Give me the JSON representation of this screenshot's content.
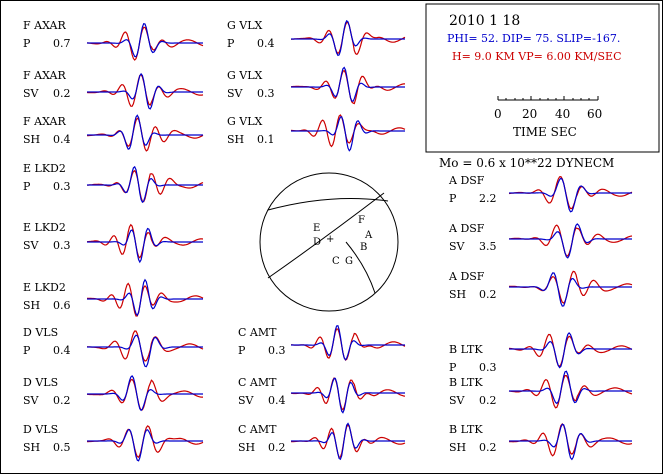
{
  "header": {
    "date": "2010  1 18",
    "mechanism": "PHI=  52. DIP= 75. SLIP=-167.",
    "depth_vp": "H=  9.0 KM  VP= 6.00 KM/SEC",
    "scale_ticks": [
      "0",
      "20",
      "40",
      "60"
    ],
    "scale_label": "TIME  SEC",
    "moment": "Mo =  0.6 x 10**22 DYNECM"
  },
  "colors": {
    "observed": "#cc0000",
    "synthetic": "#0000cc",
    "ink": "#000000"
  },
  "focal": {
    "labels": [
      {
        "name": "focal-label-E",
        "text": "E"
      },
      {
        "name": "focal-label-D",
        "text": "D"
      },
      {
        "name": "focal-label-F",
        "text": "F"
      },
      {
        "name": "focal-label-A",
        "text": "A"
      },
      {
        "name": "focal-label-B",
        "text": "B"
      },
      {
        "name": "focal-label-C",
        "text": "C"
      },
      {
        "name": "focal-label-G",
        "text": "G"
      },
      {
        "name": "focal-plus",
        "text": "+"
      }
    ]
  },
  "traces": [
    {
      "station": "F AXAR",
      "phase": "P",
      "amp": "0.7"
    },
    {
      "station": "F AXAR",
      "phase": "SV",
      "amp": "0.2"
    },
    {
      "station": "F AXAR",
      "phase": "SH",
      "amp": "0.4"
    },
    {
      "station": "E LKD2",
      "phase": "P",
      "amp": "0.3"
    },
    {
      "station": "E LKD2",
      "phase": "SV",
      "amp": "0.3"
    },
    {
      "station": "E LKD2",
      "phase": "SH",
      "amp": "0.6"
    },
    {
      "station": "D VLS",
      "phase": "P",
      "amp": "0.4"
    },
    {
      "station": "D VLS",
      "phase": "SV",
      "amp": "0.2"
    },
    {
      "station": "D VLS",
      "phase": "SH",
      "amp": "0.5"
    },
    {
      "station": "G VLX",
      "phase": "P",
      "amp": "0.4"
    },
    {
      "station": "G VLX",
      "phase": "SV",
      "amp": "0.3"
    },
    {
      "station": "G VLX",
      "phase": "SH",
      "amp": "0.1"
    },
    {
      "station": "C AMT",
      "phase": "P",
      "amp": "0.3"
    },
    {
      "station": "C AMT",
      "phase": "SV",
      "amp": "0.4"
    },
    {
      "station": "C AMT",
      "phase": "SH",
      "amp": "0.2"
    },
    {
      "station": "A DSF",
      "phase": "P",
      "amp": "2.2"
    },
    {
      "station": "A DSF",
      "phase": "SV",
      "amp": "3.5"
    },
    {
      "station": "A DSF",
      "phase": "SH",
      "amp": "0.2"
    },
    {
      "station": "B LTK",
      "phase": "P",
      "amp": "0.3"
    },
    {
      "station": "B LTK",
      "phase": "SV",
      "amp": "0.2"
    },
    {
      "station": "B LTK",
      "phase": "SH",
      "amp": "0.2"
    }
  ]
}
